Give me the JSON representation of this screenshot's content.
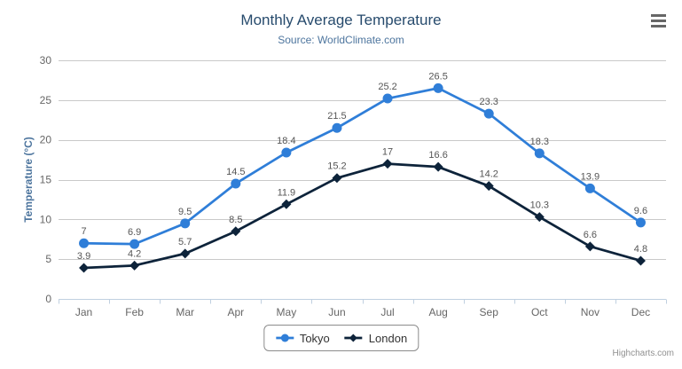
{
  "credits": "Highcharts.com",
  "colors": {
    "title": "#274b6d",
    "subtitle": "#4d759e",
    "axis_title": "#4d759e",
    "axis_labels": "#666666",
    "gridline": "#c9c9c9",
    "axis_line": "#c0d0e0",
    "data_label": "#555555",
    "legend_text": "#333333",
    "legend_border": "#8c8c8c",
    "credits": "#909090",
    "menu_icon": "#666666",
    "background": "#ffffff"
  },
  "icons": {
    "menu": "hamburger-menu-icon"
  },
  "chart_data": {
    "type": "line",
    "title": "Monthly Average Temperature",
    "subtitle": "Source: WorldClimate.com",
    "categories": [
      "Jan",
      "Feb",
      "Mar",
      "Apr",
      "May",
      "Jun",
      "Jul",
      "Aug",
      "Sep",
      "Oct",
      "Nov",
      "Dec"
    ],
    "series": [
      {
        "name": "Tokyo",
        "color": "#2f7ed8",
        "marker": "circle",
        "values": [
          7,
          6.9,
          9.5,
          14.5,
          18.4,
          21.5,
          25.2,
          26.5,
          23.3,
          18.3,
          13.9,
          9.6
        ]
      },
      {
        "name": "London",
        "color": "#0d233a",
        "marker": "diamond",
        "values": [
          3.9,
          4.2,
          5.7,
          8.5,
          11.9,
          15.2,
          17,
          16.6,
          14.2,
          10.3,
          6.6,
          4.8
        ]
      }
    ],
    "xlabel": "",
    "ylabel": "Temperature (°C)",
    "ylim": [
      0,
      30
    ],
    "yticks": [
      0,
      5,
      10,
      15,
      20,
      25,
      30
    ],
    "grid": true,
    "data_labels": true,
    "legend_position": "bottom"
  }
}
